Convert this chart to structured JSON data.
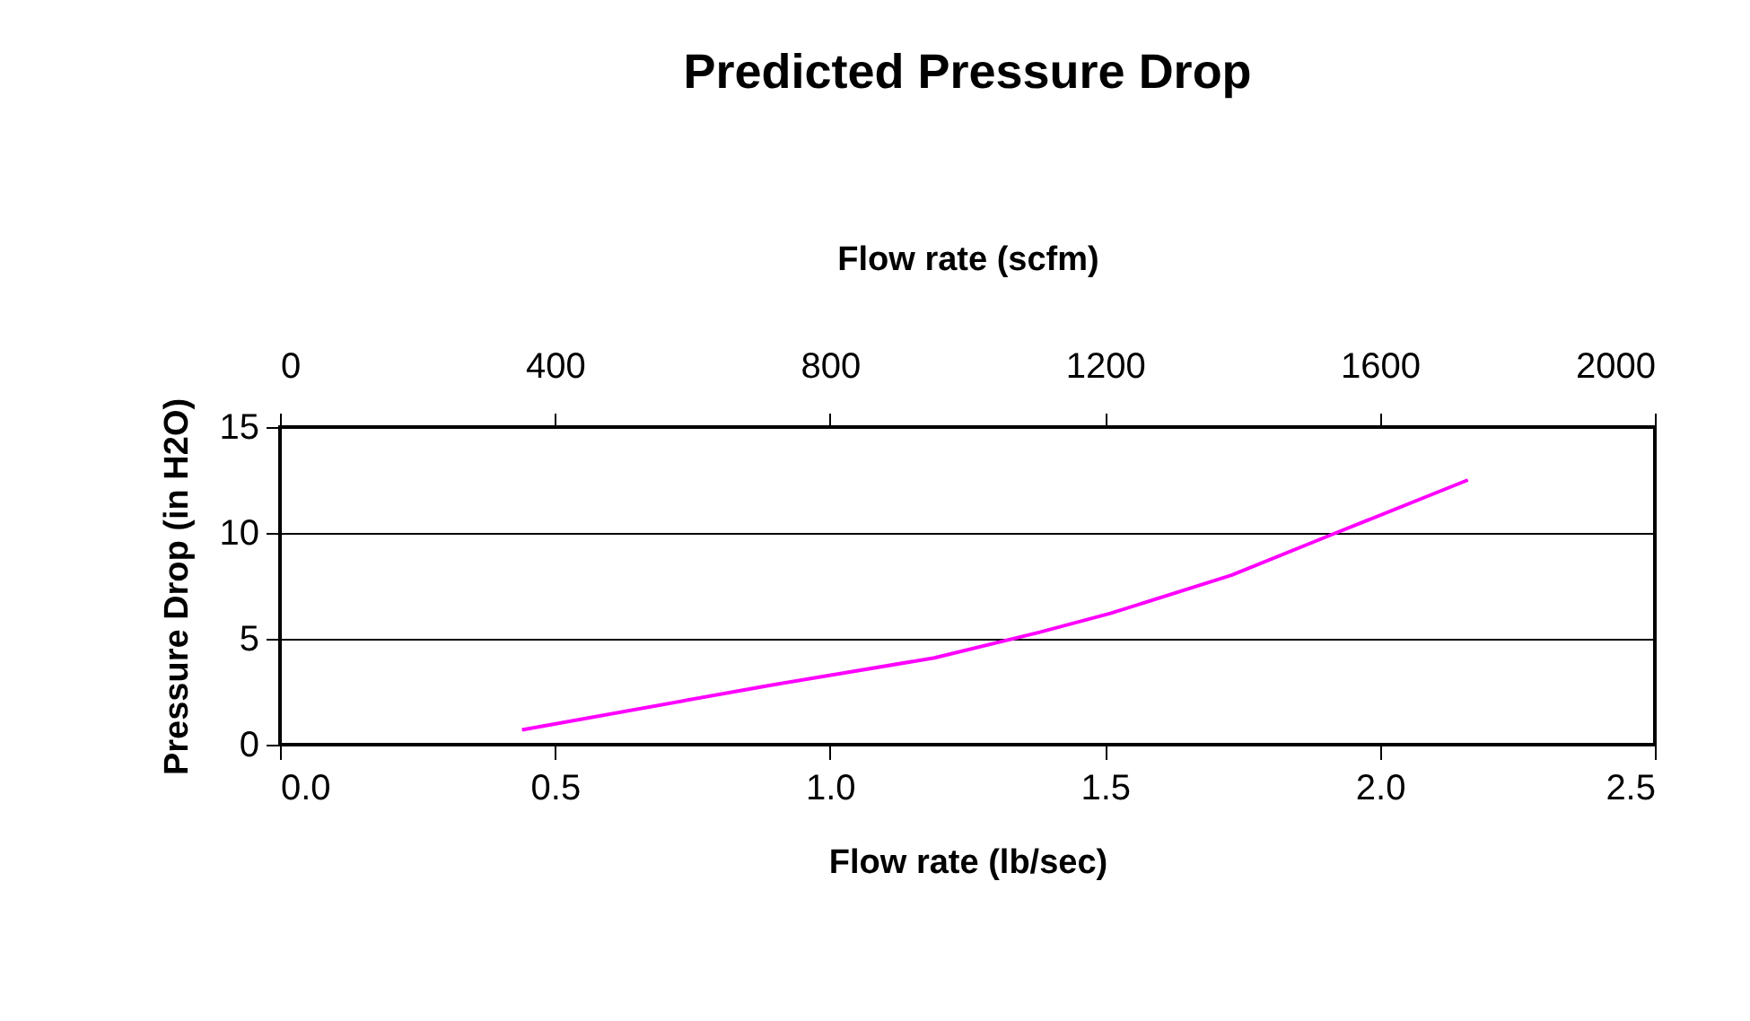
{
  "chart_data": {
    "type": "line",
    "title": "Predicted Pressure Drop",
    "xlabel": "Flow rate (lb/sec)",
    "x2label": "Flow rate (scfm)",
    "ylabel": "Pressure Drop (in H2O)",
    "x": [
      0.44,
      0.89,
      1.19,
      1.38,
      1.51,
      1.73,
      1.92,
      2.16
    ],
    "series": [
      {
        "color": "#ff00ff",
        "values": [
          0.7,
          2.8,
          4.1,
          5.3,
          6.2,
          8.0,
          10.0,
          12.5
        ]
      }
    ],
    "xlim": [
      0,
      2.5
    ],
    "xticks": [
      {
        "value": 0,
        "label": "0.0"
      },
      {
        "value": 0.5,
        "label": "0.5"
      },
      {
        "value": 1,
        "label": "1.0"
      },
      {
        "value": 1.5,
        "label": "1.5"
      },
      {
        "value": 2,
        "label": "2.0"
      },
      {
        "value": 2.5,
        "label": "2.5"
      }
    ],
    "x2lim": [
      0,
      2000
    ],
    "x2ticks": [
      0,
      400,
      800,
      1200,
      1600,
      2000
    ],
    "ylim": [
      0,
      15
    ],
    "yticks": [
      0,
      5,
      10,
      15
    ],
    "grid": "y",
    "marker": "none",
    "line_style": "solid"
  }
}
